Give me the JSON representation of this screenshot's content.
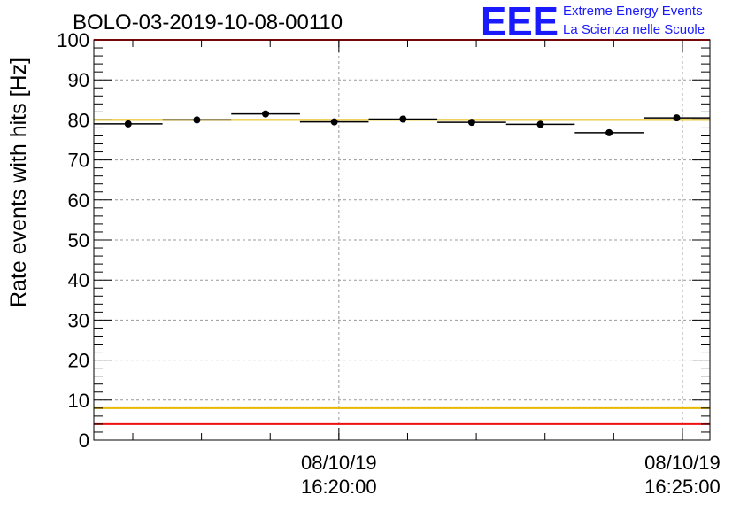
{
  "title": "BOLO-03-2019-10-08-00110",
  "logo": {
    "letters": "EEE",
    "line1": "Extreme Energy Events",
    "line2": "La Scienza nelle Scuole",
    "color": "#1a1aff"
  },
  "chart_data": {
    "type": "scatter",
    "title": "BOLO-03-2019-10-08-00110",
    "xlabel": "",
    "ylabel": "Rate events with hits [Hz]",
    "ylim": [
      0,
      100
    ],
    "y_ticks": [
      0,
      10,
      20,
      30,
      40,
      50,
      60,
      70,
      80,
      90,
      100
    ],
    "x_range": [
      "2019-10-08 16:16:26",
      "2019-10-08 16:25:24"
    ],
    "x_tick_labels": [
      {
        "time": "2019-10-08 16:20:00",
        "date_text": "08/10/19",
        "time_text": "16:20:00"
      },
      {
        "time": "2019-10-08 16:25:00",
        "date_text": "08/10/19",
        "time_text": "16:25:00"
      }
    ],
    "grid": true,
    "series": [
      {
        "marker": "circle",
        "color": "#000000",
        "points": [
          {
            "x_start": "2019-10-08 16:16:26",
            "x_end": "2019-10-08 16:17:26",
            "y": 79.0
          },
          {
            "x_start": "2019-10-08 16:17:26",
            "x_end": "2019-10-08 16:18:26",
            "y": 80.0
          },
          {
            "x_start": "2019-10-08 16:18:26",
            "x_end": "2019-10-08 16:19:26",
            "y": 81.5
          },
          {
            "x_start": "2019-10-08 16:19:26",
            "x_end": "2019-10-08 16:20:26",
            "y": 79.5
          },
          {
            "x_start": "2019-10-08 16:20:26",
            "x_end": "2019-10-08 16:21:26",
            "y": 80.2
          },
          {
            "x_start": "2019-10-08 16:21:26",
            "x_end": "2019-10-08 16:22:26",
            "y": 79.4
          },
          {
            "x_start": "2019-10-08 16:22:26",
            "x_end": "2019-10-08 16:23:26",
            "y": 78.9
          },
          {
            "x_start": "2019-10-08 16:23:26",
            "x_end": "2019-10-08 16:24:26",
            "y": 76.8
          },
          {
            "x_start": "2019-10-08 16:24:26",
            "x_end": "2019-10-08 16:25:24",
            "y": 80.5
          }
        ]
      }
    ],
    "reference_lines": [
      {
        "y": 100,
        "color": "#ee1111"
      },
      {
        "y": 80,
        "color": "#e6b800"
      },
      {
        "y": 8,
        "color": "#e6b800"
      },
      {
        "y": 4,
        "color": "#ee1111"
      }
    ]
  }
}
